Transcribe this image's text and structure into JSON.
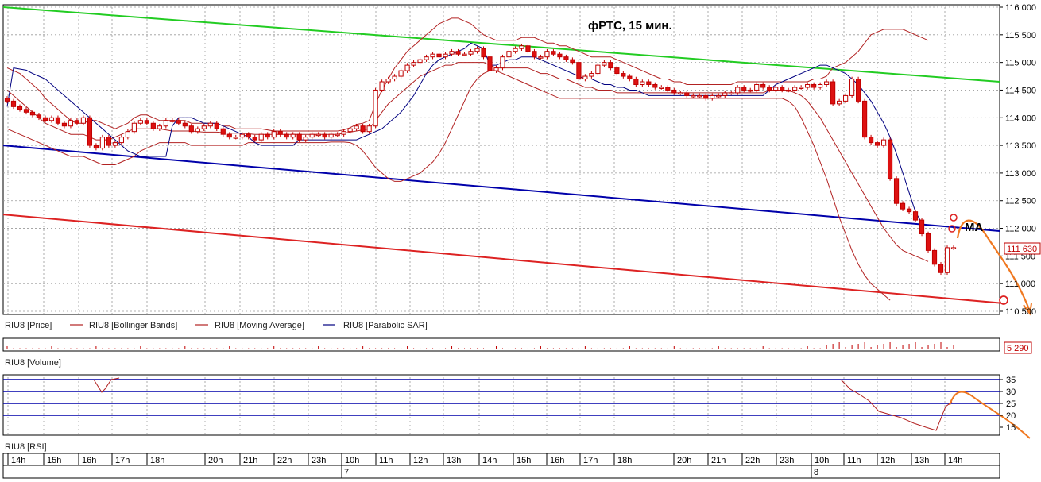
{
  "chart_data": {
    "type": "candlestick",
    "title": "фРТС, 15 мин.",
    "annotation_ma": "MA",
    "price_panel": {
      "ylim": [
        110500,
        116000
      ],
      "y_ticks": [
        "116 000",
        "115 500",
        "115 000",
        "114 500",
        "114 000",
        "113 500",
        "113 000",
        "112 500",
        "112 000",
        "111 500",
        "111 000",
        "110 500"
      ],
      "last_price_label": "111 630",
      "legend": [
        {
          "name": "RIU8 [Price]",
          "color": "#c00000"
        },
        {
          "name": "RIU8 [Bollinger Bands]",
          "color": "#b22222"
        },
        {
          "name": "RIU8 [Moving Average]",
          "color": "#b22222"
        },
        {
          "name": "RIU8 [Parabolic SAR]",
          "color": "#000080"
        }
      ],
      "close": [
        114300,
        114200,
        114150,
        114100,
        114050,
        114000,
        113950,
        114000,
        113900,
        113850,
        113950,
        113900,
        114000,
        113500,
        113450,
        113650,
        113500,
        113550,
        113650,
        113750,
        113900,
        113950,
        113900,
        113800,
        113850,
        113950,
        113950,
        113900,
        113850,
        113750,
        113800,
        113850,
        113900,
        113800,
        113700,
        113650,
        113650,
        113700,
        113650,
        113600,
        113700,
        113650,
        113750,
        113700,
        113650,
        113700,
        113600,
        113650,
        113700,
        113700,
        113650,
        113700,
        113700,
        113750,
        113800,
        113850,
        113750,
        113850,
        114500,
        114650,
        114700,
        114750,
        114850,
        114950,
        115000,
        115050,
        115100,
        115150,
        115100,
        115150,
        115200,
        115150,
        115150,
        115200,
        115250,
        115100,
        114850,
        114900,
        115100,
        115200,
        115250,
        115300,
        115200,
        115100,
        115100,
        115200,
        115150,
        115100,
        115050,
        115000,
        114700,
        114750,
        114800,
        114950,
        115000,
        114900,
        114800,
        114750,
        114700,
        114600,
        114650,
        114600,
        114550,
        114550,
        114500,
        114450,
        114450,
        114400,
        114400,
        114400,
        114350,
        114400,
        114400,
        114450,
        114450,
        114550,
        114500,
        114500,
        114600,
        114550,
        114500,
        114550,
        114500,
        114500,
        114550,
        114550,
        114600,
        114550,
        114600,
        114650,
        114250,
        114300,
        114400,
        114700,
        114300,
        113650,
        113550,
        113500,
        113600,
        112900,
        112450,
        112350,
        112300,
        112150,
        111900,
        111600,
        111350,
        111200,
        111650,
        111650
      ],
      "open": [
        114350,
        114300,
        114200,
        114150,
        114100,
        114050,
        114000,
        113950,
        114000,
        113900,
        113850,
        113950,
        113900,
        114000,
        113500,
        113450,
        113650,
        113500,
        113550,
        113650,
        113750,
        113900,
        113950,
        113900,
        113800,
        113850,
        113950,
        113950,
        113900,
        113850,
        113750,
        113800,
        113850,
        113900,
        113800,
        113700,
        113650,
        113650,
        113700,
        113650,
        113600,
        113700,
        113650,
        113750,
        113700,
        113650,
        113700,
        113600,
        113650,
        113700,
        113700,
        113650,
        113700,
        113700,
        113750,
        113800,
        113850,
        113750,
        113850,
        114500,
        114650,
        114700,
        114750,
        114850,
        114950,
        115000,
        115050,
        115100,
        115150,
        115100,
        115150,
        115200,
        115150,
        115150,
        115200,
        115250,
        115100,
        114850,
        114900,
        115100,
        115200,
        115250,
        115300,
        115200,
        115100,
        115100,
        115200,
        115150,
        115100,
        115050,
        115000,
        114700,
        114750,
        114800,
        114950,
        115000,
        114900,
        114800,
        114750,
        114700,
        114600,
        114650,
        114600,
        114550,
        114550,
        114500,
        114450,
        114450,
        114400,
        114400,
        114400,
        114350,
        114400,
        114400,
        114450,
        114450,
        114550,
        114500,
        114500,
        114600,
        114550,
        114500,
        114550,
        114500,
        114500,
        114550,
        114550,
        114600,
        114550,
        114600,
        114650,
        114250,
        114300,
        114400,
        114700,
        114300,
        113650,
        113550,
        113500,
        113600,
        112900,
        112450,
        112350,
        112300,
        112150,
        111900,
        111600,
        111350,
        111200,
        111650
      ],
      "bollinger_upper": [
        114900,
        114850,
        114800,
        114700,
        114600,
        114500,
        114350,
        114250,
        114150,
        114050,
        113950,
        113900,
        113900,
        113950,
        113950,
        113900,
        113850,
        113800,
        113850,
        113900,
        114000,
        114050,
        114050,
        114000,
        113950,
        113950,
        113950,
        113950,
        113950,
        113900,
        113900,
        113900,
        113900,
        113900,
        113850,
        113850,
        113800,
        113800,
        113800,
        113800,
        113800,
        113780,
        113760,
        113760,
        113760,
        113760,
        113760,
        113760,
        113760,
        113760,
        113760,
        113760,
        113760,
        113780,
        113820,
        113880,
        113900,
        113950,
        114250,
        114500,
        114700,
        114900,
        115050,
        115200,
        115300,
        115400,
        115500,
        115600,
        115700,
        115750,
        115800,
        115800,
        115750,
        115700,
        115600,
        115500,
        115450,
        115400,
        115400,
        115400,
        115400,
        115450,
        115450,
        115450,
        115400,
        115350,
        115350,
        115300,
        115300,
        115250,
        115200,
        115150,
        115100,
        115100,
        115100,
        115100,
        115050,
        115000,
        114950,
        114900,
        114850,
        114800,
        114750,
        114700,
        114700,
        114650,
        114650,
        114600,
        114600,
        114600,
        114600,
        114600,
        114600,
        114600,
        114600,
        114650,
        114650,
        114650,
        114650,
        114650,
        114650,
        114650,
        114650,
        114650,
        114650,
        114650,
        114650,
        114700,
        114700,
        114750,
        114900,
        114950,
        115000,
        115100,
        115200,
        115350,
        115500,
        115550,
        115600,
        115600,
        115600,
        115600,
        115550,
        115500,
        115450,
        115400
      ],
      "bollinger_lower": [
        113800,
        113750,
        113700,
        113650,
        113600,
        113550,
        113500,
        113450,
        113400,
        113350,
        113300,
        113300,
        113300,
        113250,
        113200,
        113150,
        113150,
        113150,
        113200,
        113250,
        113300,
        113400,
        113450,
        113500,
        113550,
        113550,
        113550,
        113550,
        113550,
        113500,
        113500,
        113500,
        113500,
        113500,
        113500,
        113500,
        113500,
        113500,
        113550,
        113550,
        113550,
        113550,
        113550,
        113550,
        113550,
        113550,
        113550,
        113550,
        113550,
        113550,
        113550,
        113560,
        113560,
        113560,
        113550,
        113500,
        113400,
        113250,
        113100,
        113000,
        112900,
        112850,
        112850,
        112900,
        112950,
        113000,
        113100,
        113200,
        113350,
        113550,
        113800,
        114050,
        114300,
        114550,
        114700,
        114800,
        114850,
        114850,
        114800,
        114750,
        114700,
        114650,
        114600,
        114550,
        114500,
        114450,
        114400,
        114350,
        114350,
        114350,
        114350,
        114350,
        114350,
        114350,
        114350,
        114350,
        114350,
        114350,
        114350,
        114350,
        114350,
        114350,
        114350,
        114350,
        114350,
        114350,
        114350,
        114350,
        114350,
        114350,
        114350,
        114350,
        114350,
        114350,
        114350,
        114350,
        114350,
        114350,
        114350,
        114350,
        114350,
        114350,
        114350,
        114300,
        114200,
        114000,
        113750,
        113500,
        113200,
        112900,
        112550,
        112200,
        111900,
        111600,
        111350,
        111150,
        111000,
        110900,
        110800,
        110700
      ],
      "moving_average": [
        114500,
        114400,
        114300,
        114200,
        114100,
        114000,
        113900,
        113850,
        113800,
        113750,
        113700,
        113700,
        113700,
        113650,
        113600,
        113600,
        113600,
        113650,
        113700,
        113750,
        113800,
        113800,
        113800,
        113800,
        113800,
        113780,
        113760,
        113760,
        113760,
        113760,
        113750,
        113740,
        113740,
        113740,
        113730,
        113720,
        113720,
        113720,
        113710,
        113700,
        113700,
        113700,
        113700,
        113700,
        113700,
        113700,
        113700,
        113700,
        113700,
        113700,
        113700,
        113700,
        113700,
        113720,
        113740,
        113760,
        113780,
        113800,
        113950,
        114100,
        114250,
        114350,
        114450,
        114550,
        114650,
        114750,
        114800,
        114850,
        114900,
        114950,
        114950,
        115000,
        115000,
        115000,
        115000,
        115000,
        114950,
        114900,
        114900,
        114900,
        114900,
        114900,
        114900,
        114850,
        114800,
        114800,
        114750,
        114700,
        114700,
        114650,
        114600,
        114550,
        114550,
        114500,
        114500,
        114500,
        114450,
        114450,
        114450,
        114450,
        114450,
        114450,
        114450,
        114450,
        114450,
        114450,
        114450,
        114450,
        114450,
        114450,
        114450,
        114450,
        114450,
        114450,
        114450,
        114450,
        114450,
        114450,
        114450,
        114450,
        114500,
        114500,
        114500,
        114500,
        114450,
        114400,
        114300,
        114150,
        114000,
        113800,
        113600,
        113400,
        113200,
        113000,
        112800,
        112600,
        112400,
        112200,
        112000,
        111850,
        111700,
        111600,
        111550,
        111500,
        111450,
        111400
      ],
      "parabolic_sar": [
        114200,
        114900,
        114880,
        114860,
        114800,
        114750,
        114700,
        114600,
        114500,
        114400,
        114300,
        114200,
        114100,
        114000,
        113900,
        113800,
        113700,
        113600,
        113500,
        113400,
        113350,
        113300,
        113300,
        113300,
        113300,
        113300,
        113850,
        114000,
        114000,
        114000,
        113950,
        113900,
        113900,
        113900,
        113850,
        113800,
        113750,
        113700,
        113650,
        113550,
        113500,
        113500,
        113500,
        113500,
        113500,
        113500,
        113600,
        113600,
        113600,
        113600,
        113600,
        113600,
        113600,
        113600,
        113600,
        113600,
        113650,
        113700,
        113750,
        113800,
        113900,
        114000,
        114100,
        114250,
        114400,
        114600,
        114800,
        114950,
        115050,
        115100,
        115150,
        115200,
        115250,
        115350,
        115300,
        115250,
        114950,
        114950,
        115000,
        115050,
        115050,
        115100,
        115100,
        115100,
        115050,
        115000,
        114950,
        114900,
        114850,
        114800,
        114750,
        114700,
        114700,
        114650,
        114600,
        114600,
        114550,
        114550,
        114500,
        114500,
        114450,
        114400,
        114400,
        114400,
        114400,
        114400,
        114400,
        114400,
        114400,
        114400,
        114400,
        114400,
        114400,
        114400,
        114400,
        114400,
        114400,
        114400,
        114400,
        114400,
        114500,
        114600,
        114650,
        114700,
        114750,
        114800,
        114850,
        114900,
        114950,
        114950,
        114900,
        114850,
        114800,
        114700,
        114600,
        114450,
        114300,
        114100,
        113900,
        113650,
        113350,
        113000,
        112650,
        112300,
        112100
      ],
      "trend_lines": [
        {
          "name": "green",
          "color": "#22cc22",
          "from": 116000,
          "to": 114650
        },
        {
          "name": "blue",
          "color": "#0000aa",
          "from": 113500,
          "to": 111950
        },
        {
          "name": "red",
          "color": "#dd2222",
          "from": 112250,
          "to": 110650
        }
      ]
    },
    "volume_panel": {
      "label": "RIU8 [Volume]",
      "last_value_label": "5 290"
    },
    "rsi_panel": {
      "label": "RIU8 [RSI]",
      "y_ticks": [
        "35",
        "30",
        "25",
        "20",
        "15"
      ],
      "levels": [
        35,
        30,
        25,
        20
      ]
    },
    "time_axis": {
      "hour_labels": [
        "14h",
        "15h",
        "16h",
        "17h",
        "18h",
        "20h",
        "21h",
        "22h",
        "23h",
        "10h",
        "11h",
        "12h",
        "13h",
        "14h",
        "15h",
        "16h",
        "17h",
        "18h",
        "20h",
        "21h",
        "22h",
        "23h",
        "10h",
        "11h",
        "12h",
        "13h",
        "14h"
      ],
      "day_labels": [
        "7",
        "8"
      ]
    },
    "forecast_color": "#f07820"
  }
}
